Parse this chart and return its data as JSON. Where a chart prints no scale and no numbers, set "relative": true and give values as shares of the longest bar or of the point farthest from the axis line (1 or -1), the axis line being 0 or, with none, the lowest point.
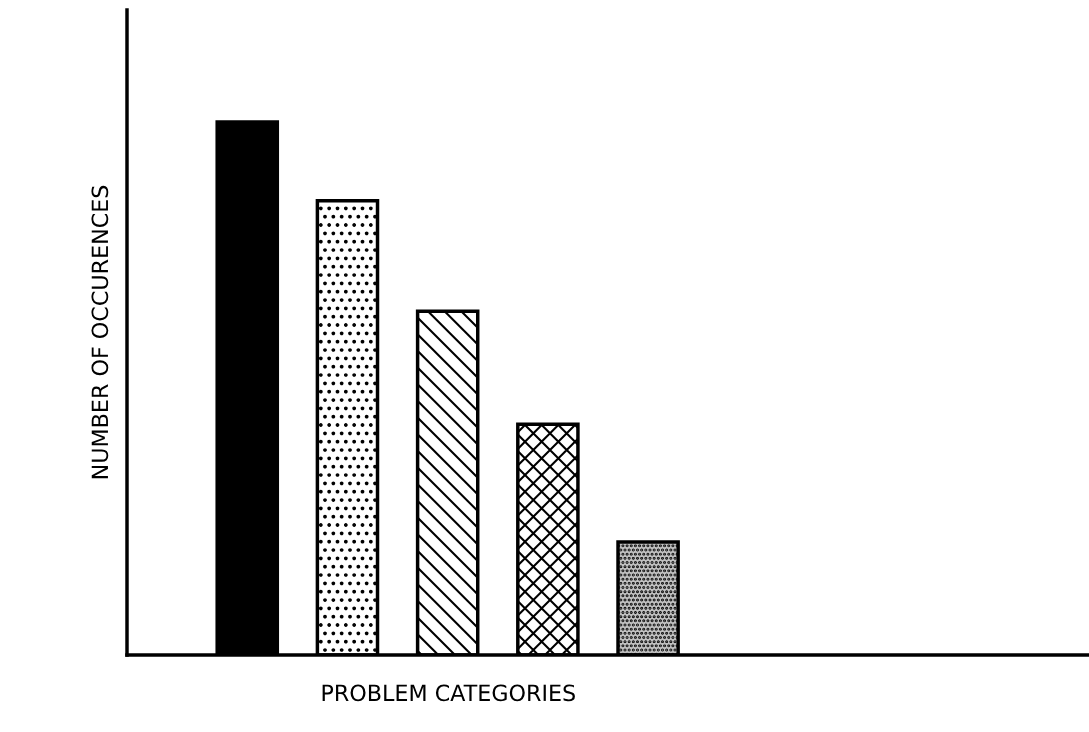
{
  "chart_data": {
    "type": "bar",
    "relative": true,
    "xlabel": "PROBLEM CATEGORIES",
    "ylabel": "NUMBER OF OCCURENCES",
    "categories": [
      null,
      null,
      null,
      null,
      null
    ],
    "values": [
      1,
      0.852,
      0.645,
      0.433,
      0.212
    ],
    "colors": [
      "#000000",
      "#ffffff",
      "#ffffff",
      "#ffffff",
      "#c0c0c0"
    ],
    "grid": false,
    "legend": false
  }
}
